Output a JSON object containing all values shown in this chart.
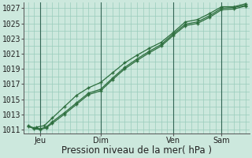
{
  "title": "",
  "xlabel": "Pression niveau de la mer( hPa )",
  "ylabel": "",
  "background_color": "#cce8dd",
  "grid_color": "#99ccbb",
  "line_color": "#2d6e3e",
  "ylim": [
    1010.5,
    1027.8
  ],
  "xlim": [
    -2,
    110
  ],
  "yticks": [
    1011,
    1013,
    1015,
    1017,
    1019,
    1021,
    1023,
    1025,
    1027
  ],
  "xtick_positions": [
    6,
    36,
    72,
    96
  ],
  "xtick_labels": [
    "Jeu",
    "Dim",
    "Ven",
    "Sam"
  ],
  "line1_x": [
    0,
    3,
    6,
    9,
    12,
    18,
    24,
    30,
    36,
    42,
    48,
    54,
    60,
    66,
    72,
    78,
    84,
    90,
    96,
    102,
    108
  ],
  "line1_y": [
    1011.5,
    1011.2,
    1011.1,
    1011.3,
    1012.0,
    1013.2,
    1014.5,
    1015.8,
    1016.3,
    1017.8,
    1019.2,
    1020.3,
    1021.3,
    1022.2,
    1023.6,
    1024.9,
    1025.2,
    1026.0,
    1027.0,
    1027.1,
    1027.4
  ],
  "line2_x": [
    0,
    3,
    6,
    9,
    12,
    18,
    24,
    30,
    36,
    42,
    48,
    54,
    60,
    66,
    72,
    78,
    84,
    90,
    96,
    102,
    108
  ],
  "line2_y": [
    1011.4,
    1011.1,
    1011.0,
    1011.2,
    1011.8,
    1013.0,
    1014.3,
    1015.6,
    1016.1,
    1017.6,
    1019.0,
    1020.1,
    1021.1,
    1022.0,
    1023.4,
    1024.7,
    1025.0,
    1025.8,
    1026.8,
    1026.9,
    1027.3
  ],
  "line3_x": [
    4,
    8,
    12,
    18,
    24,
    30,
    36,
    42,
    48,
    54,
    60,
    66,
    72,
    78,
    84,
    90,
    96,
    102,
    108
  ],
  "line3_y": [
    1011.3,
    1011.5,
    1012.5,
    1014.0,
    1015.5,
    1016.5,
    1017.2,
    1018.5,
    1019.8,
    1020.8,
    1021.7,
    1022.5,
    1023.8,
    1025.2,
    1025.5,
    1026.3,
    1027.2,
    1027.2,
    1027.6
  ],
  "marker_size": 3.5,
  "line_width": 0.9,
  "xlabel_fontsize": 8.5,
  "tick_fontsize": 7,
  "vline_color": "#99ccbb",
  "vline_positions": [
    6,
    36,
    72,
    96
  ]
}
